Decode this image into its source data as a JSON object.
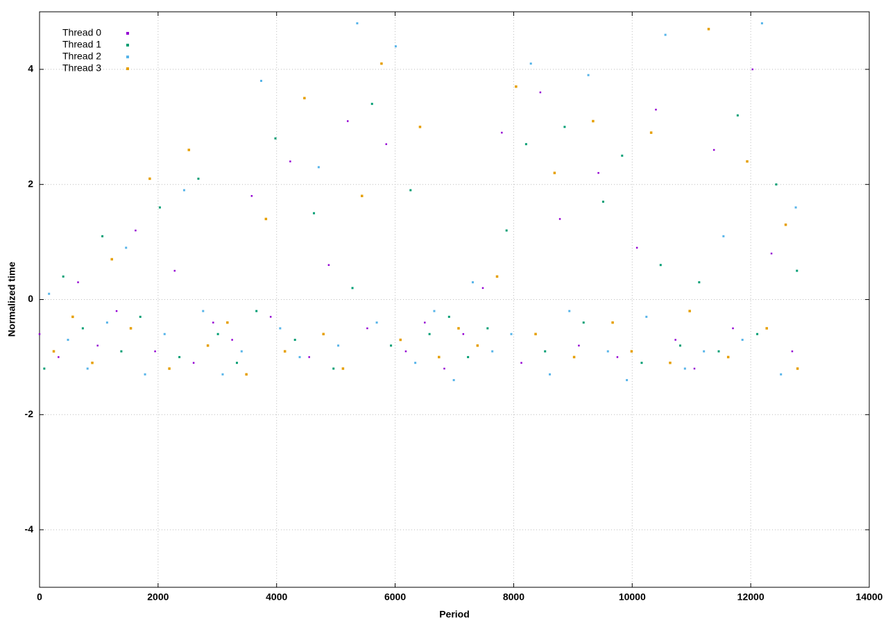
{
  "chart_data": {
    "type": "scatter",
    "xlabel": "Period",
    "ylabel": "Normalized time",
    "xlim": [
      0,
      14000
    ],
    "ylim": [
      -5,
      5
    ],
    "xticks": [
      0,
      2000,
      4000,
      6000,
      8000,
      10000,
      12000,
      14000
    ],
    "yticks": [
      -4,
      -2,
      0,
      2,
      4
    ],
    "grid": true,
    "legend": "top-left",
    "series": [
      {
        "name": "Thread 0",
        "color": "#9400d3",
        "x": [
          0,
          320,
          650,
          980,
          1300,
          1620,
          1950,
          2280,
          2600,
          2930,
          3250,
          3580,
          3900,
          4230,
          4550,
          4880,
          5200,
          5530,
          5850,
          6180,
          6500,
          6830,
          7150,
          7480,
          7800,
          8130,
          8450,
          8780,
          9100,
          9430,
          9750,
          10080,
          10400,
          10730,
          11050,
          11380,
          11700,
          12030,
          12350,
          12700
        ],
        "values": [
          -0.6,
          -1.0,
          0.3,
          -0.8,
          -0.2,
          1.2,
          -0.9,
          0.5,
          -1.1,
          -0.4,
          -0.7,
          1.8,
          -0.3,
          2.4,
          -1.0,
          0.6,
          3.1,
          -0.5,
          2.7,
          -0.9,
          -0.4,
          -1.2,
          -0.6,
          0.2,
          2.9,
          -1.1,
          3.6,
          1.4,
          -0.8,
          2.2,
          -1.0,
          0.9,
          3.3,
          -0.7,
          -1.2,
          2.6,
          -0.5,
          4.0,
          0.8,
          -0.9
        ]
      },
      {
        "name": "Thread 1",
        "color": "#009e73",
        "x": [
          80,
          400,
          730,
          1060,
          1380,
          1700,
          2030,
          2360,
          2680,
          3010,
          3330,
          3660,
          3980,
          4310,
          4630,
          4960,
          5280,
          5610,
          5930,
          6260,
          6580,
          6910,
          7230,
          7560,
          7880,
          8210,
          8530,
          8860,
          9180,
          9510,
          9830,
          10160,
          10480,
          10810,
          11130,
          11460,
          11780,
          12110,
          12430,
          12780
        ],
        "values": [
          -1.2,
          0.4,
          -0.5,
          1.1,
          -0.9,
          -0.3,
          1.6,
          -1.0,
          2.1,
          -0.6,
          -1.1,
          -0.2,
          2.8,
          -0.7,
          1.5,
          -1.2,
          0.2,
          3.4,
          -0.8,
          1.9,
          -0.6,
          -0.3,
          -1.0,
          -0.5,
          1.2,
          2.7,
          -0.9,
          3.0,
          -0.4,
          1.7,
          2.5,
          -1.1,
          0.6,
          -0.8,
          0.3,
          -0.9,
          3.2,
          -0.6,
          2.0,
          0.5
        ]
      },
      {
        "name": "Thread 2",
        "color": "#56b4e9",
        "x": [
          160,
          480,
          810,
          1140,
          1460,
          1780,
          2110,
          2440,
          2760,
          3090,
          3410,
          3740,
          4060,
          4390,
          4710,
          5040,
          5360,
          5690,
          6010,
          6340,
          6660,
          6990,
          7310,
          7640,
          7960,
          8290,
          8610,
          8940,
          9260,
          9590,
          9910,
          10240,
          10560,
          10890,
          11210,
          11540,
          11860,
          12190,
          12510,
          12760
        ],
        "values": [
          0.1,
          -0.7,
          -1.2,
          -0.4,
          0.9,
          -1.3,
          -0.6,
          1.9,
          -0.2,
          -1.3,
          -0.9,
          3.8,
          -0.5,
          -1.0,
          2.3,
          -0.8,
          4.8,
          -0.4,
          4.4,
          -1.1,
          -0.2,
          -1.4,
          0.3,
          -0.9,
          -0.6,
          4.1,
          -1.3,
          -0.2,
          3.9,
          -0.9,
          -1.4,
          -0.3,
          4.6,
          -1.2,
          -0.9,
          1.1,
          -0.7,
          4.8,
          -1.3,
          1.6
        ]
      },
      {
        "name": "Thread 3",
        "color": "#e69f00",
        "x": [
          240,
          560,
          890,
          1220,
          1540,
          1860,
          2190,
          2520,
          2840,
          3170,
          3490,
          3820,
          4140,
          4470,
          4790,
          5120,
          5440,
          5770,
          6090,
          6420,
          6740,
          7070,
          7390,
          7720,
          8040,
          8370,
          8690,
          9020,
          9340,
          9670,
          9990,
          10320,
          10640,
          10970,
          11290,
          11620,
          11940,
          12270,
          12590,
          12790
        ],
        "values": [
          -0.9,
          -0.3,
          -1.1,
          0.7,
          -0.5,
          2.1,
          -1.2,
          2.6,
          -0.8,
          -0.4,
          -1.3,
          1.4,
          -0.9,
          3.5,
          -0.6,
          -1.2,
          1.8,
          4.1,
          -0.7,
          3.0,
          -1.0,
          -0.5,
          -0.8,
          0.4,
          3.7,
          -0.6,
          2.2,
          -1.0,
          3.1,
          -0.4,
          -0.9,
          2.9,
          -1.1,
          -0.2,
          4.7,
          -1.0,
          2.4,
          -0.5,
          1.3,
          -1.2
        ]
      }
    ]
  }
}
